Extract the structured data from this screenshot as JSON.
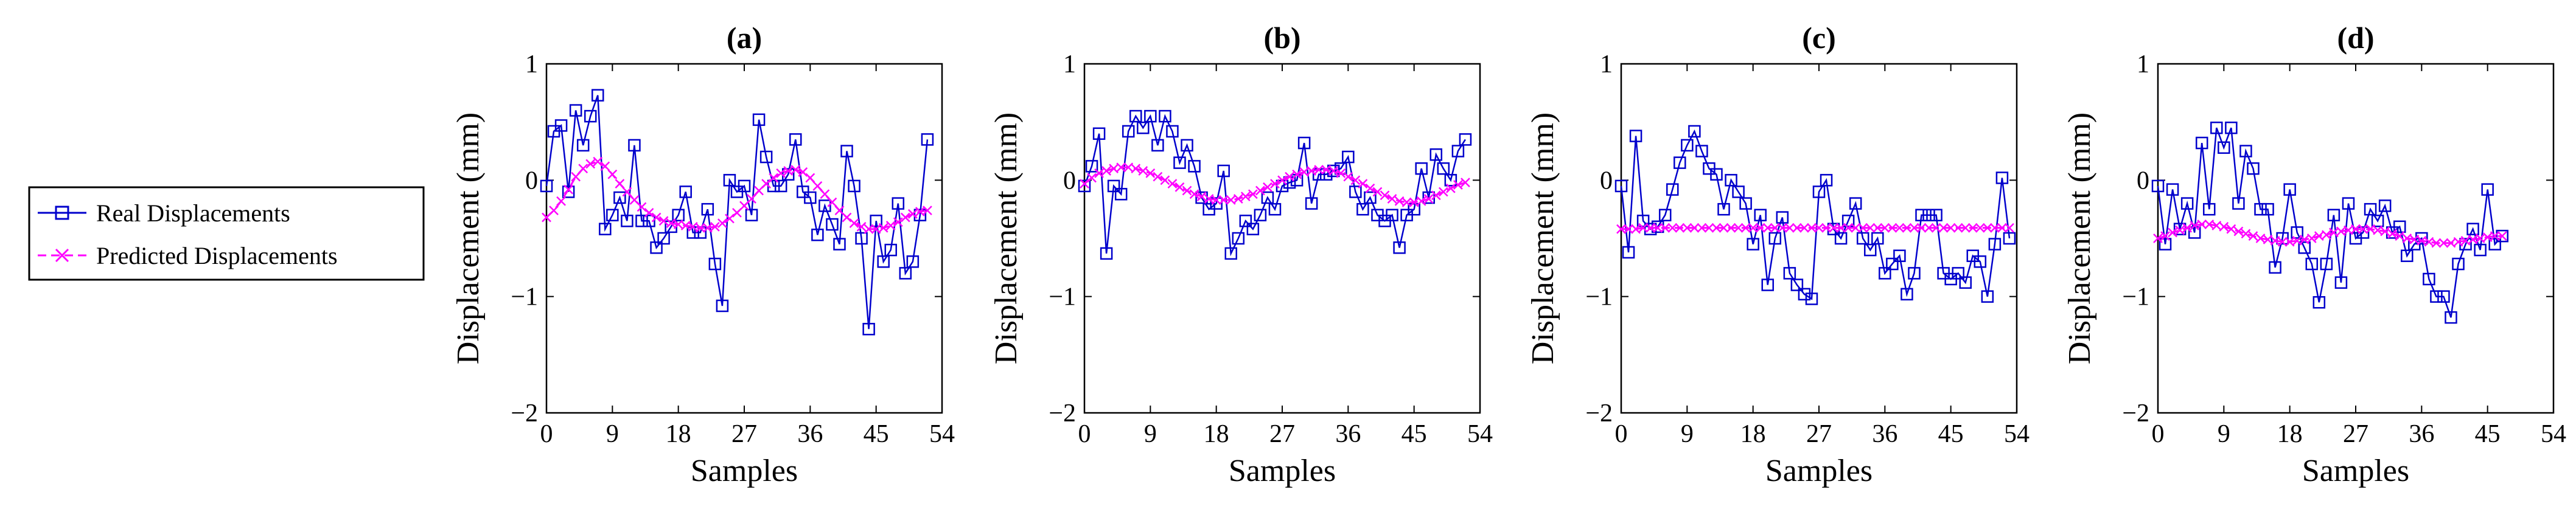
{
  "legend": {
    "entries": [
      {
        "label": "Real Displacements",
        "color": "#0000cc",
        "marker": "square-marker"
      },
      {
        "label": "Predicted Displacements",
        "color": "#ff00ff",
        "marker": "x-marker"
      }
    ]
  },
  "colors": {
    "real": "#0000cc",
    "predicted": "#ff00ff",
    "axis": "#000000"
  },
  "chart_data": [
    {
      "type": "line",
      "title": "(a)",
      "xlabel": "Samples",
      "ylabel": "Displacement (mm)",
      "xlim": [
        0,
        54
      ],
      "ylim": [
        -2,
        1
      ],
      "xticks": [
        "0",
        "9",
        "18",
        "27",
        "36",
        "45",
        "54"
      ],
      "yticks": [
        "−2",
        "−1",
        "0",
        "1"
      ],
      "series": [
        {
          "name": "Real Displacements",
          "x_start": 0,
          "values": [
            -0.05,
            0.42,
            0.47,
            -0.1,
            0.6,
            0.3,
            0.55,
            0.73,
            -0.42,
            -0.3,
            -0.15,
            -0.35,
            0.3,
            -0.35,
            -0.35,
            -0.58,
            -0.5,
            -0.4,
            -0.3,
            -0.1,
            -0.45,
            -0.45,
            -0.25,
            -0.72,
            -1.08,
            0.0,
            -0.1,
            -0.05,
            -0.3,
            0.52,
            0.2,
            -0.05,
            -0.05,
            0.05,
            0.35,
            -0.1,
            -0.15,
            -0.47,
            -0.22,
            -0.38,
            -0.55,
            0.25,
            -0.05,
            -0.5,
            -1.28,
            -0.35,
            -0.7,
            -0.6,
            -0.2,
            -0.8,
            -0.7,
            -0.3,
            0.35
          ]
        },
        {
          "name": "Predicted Displacements",
          "x_start": 0,
          "values": [
            -0.32,
            -0.26,
            -0.18,
            -0.08,
            0.03,
            0.1,
            0.14,
            0.16,
            0.12,
            0.05,
            -0.03,
            -0.1,
            -0.17,
            -0.23,
            -0.28,
            -0.32,
            -0.35,
            -0.37,
            -0.38,
            -0.39,
            -0.4,
            -0.41,
            -0.41,
            -0.4,
            -0.37,
            -0.33,
            -0.28,
            -0.22,
            -0.16,
            -0.09,
            -0.03,
            0.02,
            0.06,
            0.08,
            0.09,
            0.07,
            0.02,
            -0.05,
            -0.12,
            -0.19,
            -0.26,
            -0.32,
            -0.37,
            -0.4,
            -0.42,
            -0.42,
            -0.41,
            -0.39,
            -0.36,
            -0.32,
            -0.29,
            -0.27,
            -0.26
          ]
        }
      ]
    },
    {
      "type": "line",
      "title": "(b)",
      "xlabel": "Samples",
      "ylabel": "Displacement (mm)",
      "xlim": [
        0,
        54
      ],
      "ylim": [
        -2,
        1
      ],
      "xticks": [
        "0",
        "9",
        "18",
        "27",
        "36",
        "45",
        "54"
      ],
      "yticks": [
        "−2",
        "−1",
        "0",
        "1"
      ],
      "series": [
        {
          "name": "Real Displacements",
          "x_start": 0,
          "values": [
            -0.05,
            0.12,
            0.4,
            -0.63,
            -0.05,
            -0.12,
            0.42,
            0.55,
            0.45,
            0.55,
            0.3,
            0.55,
            0.42,
            0.15,
            0.3,
            0.12,
            -0.15,
            -0.25,
            -0.2,
            0.08,
            -0.63,
            -0.5,
            -0.35,
            -0.42,
            -0.3,
            -0.15,
            -0.25,
            -0.05,
            -0.02,
            0.0,
            0.32,
            -0.2,
            0.05,
            0.05,
            0.08,
            0.1,
            0.2,
            -0.1,
            -0.25,
            -0.15,
            -0.3,
            -0.35,
            -0.3,
            -0.58,
            -0.3,
            -0.25,
            0.1,
            -0.15,
            0.22,
            0.1,
            0.0,
            0.25,
            0.35
          ]
        },
        {
          "name": "Predicted Displacements",
          "x_start": 0,
          "values": [
            -0.03,
            0.02,
            0.06,
            0.08,
            0.1,
            0.11,
            0.11,
            0.1,
            0.08,
            0.06,
            0.03,
            0.0,
            -0.03,
            -0.06,
            -0.09,
            -0.12,
            -0.14,
            -0.16,
            -0.17,
            -0.17,
            -0.17,
            -0.16,
            -0.14,
            -0.12,
            -0.09,
            -0.06,
            -0.03,
            0.0,
            0.03,
            0.05,
            0.07,
            0.08,
            0.09,
            0.09,
            0.08,
            0.06,
            0.03,
            0.0,
            -0.03,
            -0.07,
            -0.1,
            -0.13,
            -0.16,
            -0.18,
            -0.19,
            -0.19,
            -0.18,
            -0.16,
            -0.13,
            -0.1,
            -0.07,
            -0.04,
            -0.02
          ]
        }
      ]
    },
    {
      "type": "line",
      "title": "(c)",
      "xlabel": "Samples",
      "ylabel": "Displacement (mm)",
      "xlim": [
        0,
        54
      ],
      "ylim": [
        -2,
        1
      ],
      "xticks": [
        "0",
        "9",
        "18",
        "27",
        "36",
        "45",
        "54"
      ],
      "yticks": [
        "−2",
        "−1",
        "0",
        "1"
      ],
      "series": [
        {
          "name": "Real Displacements",
          "x_start": 0,
          "values": [
            -0.05,
            -0.62,
            0.38,
            -0.35,
            -0.42,
            -0.4,
            -0.3,
            -0.08,
            0.15,
            0.3,
            0.42,
            0.25,
            0.1,
            0.05,
            -0.25,
            0.0,
            -0.1,
            -0.2,
            -0.55,
            -0.3,
            -0.9,
            -0.5,
            -0.32,
            -0.8,
            -0.9,
            -0.98,
            -1.02,
            -0.1,
            0.0,
            -0.42,
            -0.5,
            -0.35,
            -0.2,
            -0.5,
            -0.6,
            -0.5,
            -0.8,
            -0.72,
            -0.65,
            -0.98,
            -0.8,
            -0.3,
            -0.3,
            -0.3,
            -0.8,
            -0.85,
            -0.8,
            -0.88,
            -0.65,
            -0.7,
            -1.0,
            -0.55,
            0.02,
            -0.5
          ]
        },
        {
          "name": "Predicted Displacements",
          "x_start": 0,
          "values": [
            -0.42,
            -0.42,
            -0.42,
            -0.41,
            -0.41,
            -0.41,
            -0.41,
            -0.41,
            -0.41,
            -0.41,
            -0.41,
            -0.41,
            -0.41,
            -0.41,
            -0.41,
            -0.41,
            -0.41,
            -0.41,
            -0.41,
            -0.41,
            -0.41,
            -0.41,
            -0.41,
            -0.41,
            -0.41,
            -0.41,
            -0.41,
            -0.41,
            -0.41,
            -0.41,
            -0.41,
            -0.41,
            -0.41,
            -0.41,
            -0.41,
            -0.41,
            -0.41,
            -0.41,
            -0.41,
            -0.41,
            -0.41,
            -0.41,
            -0.41,
            -0.41,
            -0.41,
            -0.41,
            -0.41,
            -0.41,
            -0.41,
            -0.41,
            -0.41,
            -0.41,
            -0.41,
            -0.41
          ]
        }
      ]
    },
    {
      "type": "line",
      "title": "(d)",
      "xlabel": "Samples",
      "ylabel": "Displacement (mm)",
      "xlim": [
        0,
        54
      ],
      "ylim": [
        -2,
        1
      ],
      "xticks": [
        "0",
        "9",
        "18",
        "27",
        "36",
        "45",
        "54"
      ],
      "yticks": [
        "−2",
        "−1",
        "0",
        "1"
      ],
      "series": [
        {
          "name": "Real Displacements",
          "x_start": 0,
          "values": [
            -0.05,
            -0.55,
            -0.08,
            -0.42,
            -0.2,
            -0.45,
            0.32,
            -0.25,
            0.45,
            0.28,
            0.45,
            -0.2,
            0.25,
            0.1,
            -0.25,
            -0.25,
            -0.75,
            -0.5,
            -0.08,
            -0.45,
            -0.58,
            -0.72,
            -1.05,
            -0.72,
            -0.3,
            -0.88,
            -0.2,
            -0.5,
            -0.45,
            -0.25,
            -0.35,
            -0.22,
            -0.45,
            -0.4,
            -0.65,
            -0.55,
            -0.5,
            -0.85,
            -1.0,
            -1.0,
            -1.18,
            -0.72,
            -0.55,
            -0.42,
            -0.6,
            -0.08,
            -0.55,
            -0.48
          ]
        },
        {
          "name": "Predicted Displacements",
          "x_start": 0,
          "values": [
            -0.5,
            -0.48,
            -0.45,
            -0.43,
            -0.41,
            -0.39,
            -0.38,
            -0.38,
            -0.39,
            -0.4,
            -0.42,
            -0.44,
            -0.46,
            -0.48,
            -0.5,
            -0.51,
            -0.52,
            -0.53,
            -0.53,
            -0.52,
            -0.51,
            -0.5,
            -0.48,
            -0.47,
            -0.45,
            -0.44,
            -0.43,
            -0.42,
            -0.42,
            -0.42,
            -0.43,
            -0.44,
            -0.46,
            -0.48,
            -0.5,
            -0.51,
            -0.52,
            -0.53,
            -0.54,
            -0.54,
            -0.54,
            -0.53,
            -0.52,
            -0.51,
            -0.5,
            -0.49,
            -0.48,
            -0.48
          ]
        }
      ]
    }
  ]
}
